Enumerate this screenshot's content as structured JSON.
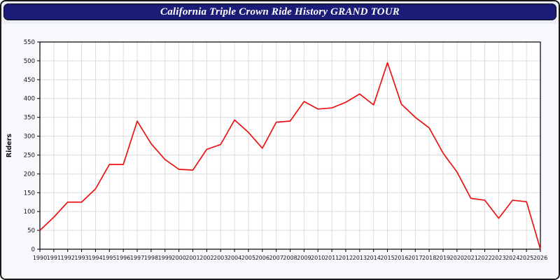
{
  "header": {
    "title": "California Triple Crown Ride History GRAND TOUR",
    "bg_color": "#1b1b78",
    "text_color": "#ffffff"
  },
  "chart_data": {
    "type": "line",
    "title": "California Triple Crown Ride History GRAND TOUR",
    "xlabel": "",
    "ylabel": "Riders",
    "x": [
      1990,
      1991,
      1992,
      1993,
      1994,
      1995,
      1996,
      1997,
      1998,
      1999,
      2000,
      2001,
      2002,
      2003,
      2004,
      2005,
      2006,
      2007,
      2008,
      2009,
      2010,
      2011,
      2012,
      2013,
      2014,
      2015,
      2016,
      2017,
      2018,
      2019,
      2020,
      2021,
      2022,
      2023,
      2024,
      2025,
      2026
    ],
    "series": [
      {
        "name": "Riders",
        "values": [
          50,
          85,
          125,
          125,
          160,
          225,
          225,
          340,
          280,
          238,
          212,
          210,
          265,
          278,
          343,
          310,
          268,
          337,
          340,
          392,
          372,
          375,
          390,
          412,
          383,
          495,
          385,
          350,
          322,
          255,
          205,
          135,
          130,
          82,
          130,
          126,
          0
        ]
      }
    ],
    "ylim": [
      0,
      550
    ],
    "ytick_step": 50,
    "grid": true,
    "legend_position": "none",
    "line_color": "#ee1111",
    "plot_bg": "#ffffff",
    "page_bg": "#eceef7",
    "gridline_color": "#dcdcdc"
  }
}
